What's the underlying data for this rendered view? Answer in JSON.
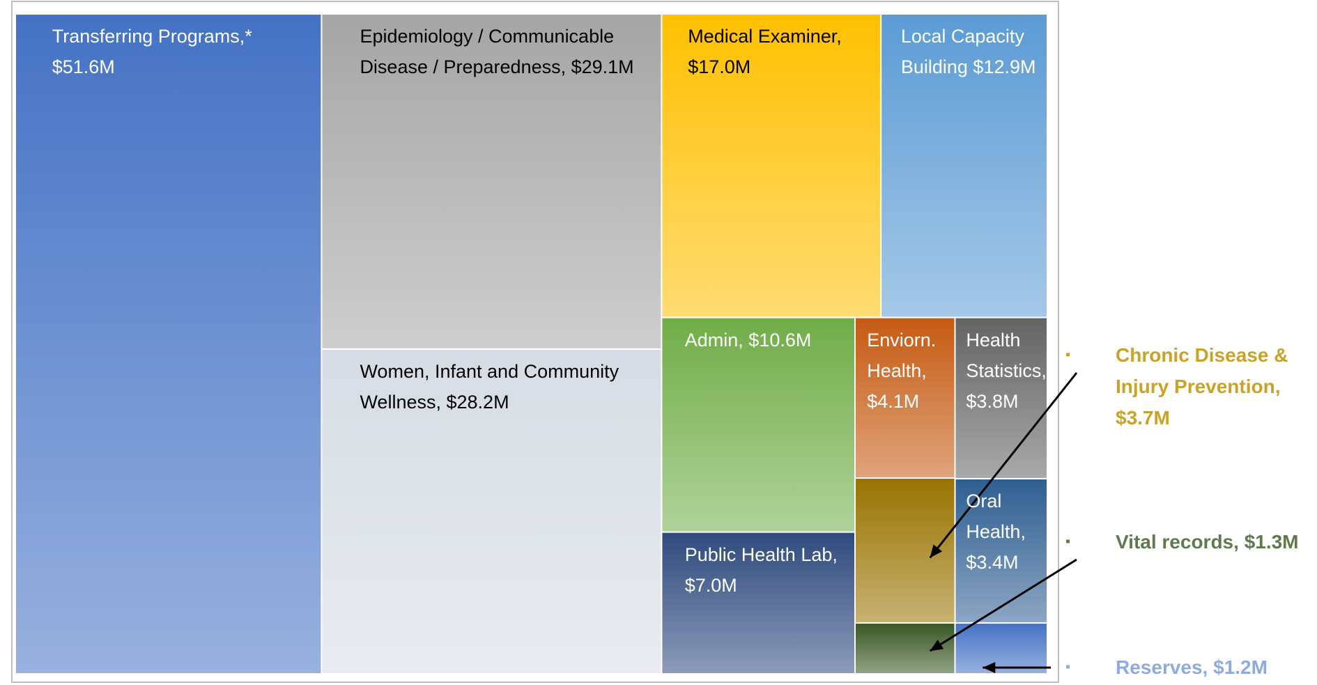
{
  "chart_data": {
    "type": "treemap",
    "categories": [
      "Transferring Programs,*",
      "Epidemiology / Communicable Disease / Preparedness,",
      "Women, Infant and Community Wellness,",
      "Medical Examiner,",
      "Local Capacity Building",
      "Admin,",
      "Public Health Lab,",
      "Enviorn. Health,",
      "Health Statistics,",
      "Chronic Disease & Injury Prevention,",
      "Oral Health,",
      "Vital records,",
      "Reserves,"
    ],
    "values": [
      51.6,
      29.1,
      28.2,
      17.0,
      12.9,
      10.6,
      7.0,
      4.1,
      3.8,
      3.7,
      3.4,
      1.3,
      1.2
    ],
    "value_labels": [
      "$51.6M",
      "$29.1M",
      "$28.2M",
      "$17.0M",
      "$12.9M",
      "$10.6M",
      "$7.0M",
      "$4.1M",
      "$3.8M",
      "$3.7M",
      "$3.4M",
      "$1.3M",
      "$1.2M"
    ],
    "colors": [
      "#4472c4",
      "#a5a5a5",
      "#d6dce4",
      "#ffc000",
      "#5b9bd5",
      "#70ad47",
      "#2e4a7d",
      "#c55a11",
      "#636363",
      "#997300",
      "#2e5e91",
      "#385723",
      "#4472c4"
    ]
  }
}
